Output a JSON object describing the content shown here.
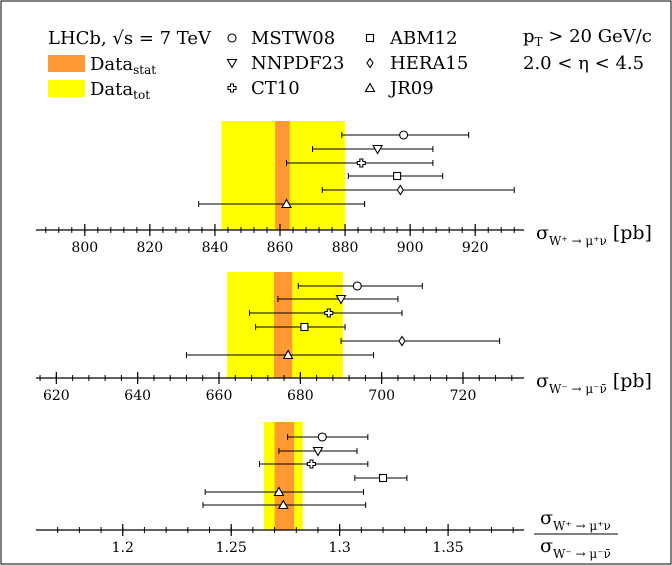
{
  "header": {
    "experiment": "LHCb, ",
    "energy_label": "√s = 7 TeV",
    "bands": [
      {
        "name": "Data",
        "sub": "stat",
        "color": "#ff9933"
      },
      {
        "name": "Data",
        "sub": "tot",
        "color": "#ffff00"
      }
    ],
    "cuts": {
      "pt": {
        "main": "p",
        "sub": "T",
        "rest": " > 20 GeV/c"
      },
      "eta": "2.0 < η < 4.5"
    }
  },
  "pdfs": [
    {
      "name": "MSTW08",
      "marker": "circle"
    },
    {
      "name": "ABM12",
      "marker": "square"
    },
    {
      "name": "NNPDF23",
      "marker": "triangle-down"
    },
    {
      "name": "HERA15",
      "marker": "diamond"
    },
    {
      "name": "CT10",
      "marker": "cross"
    },
    {
      "name": "JR09",
      "marker": "triangle-up"
    }
  ],
  "chart_data": [
    {
      "type": "scatter",
      "xlabel": {
        "sigma": "σ",
        "sub": "W⁺ → μ⁺ν",
        "unit": " [pb]"
      },
      "xlim": [
        785,
        935
      ],
      "ticks": [
        800,
        820,
        840,
        860,
        880,
        900,
        920
      ],
      "tick_labels": [
        "800",
        "820",
        "840",
        "860",
        "880",
        "900",
        "920"
      ],
      "minor_step": 4,
      "data_stat": [
        858.5,
        863
      ],
      "data_tot": [
        842,
        880
      ],
      "points": [
        {
          "pdf": "MSTW08",
          "value": 898,
          "err_low": 19,
          "err_high": 20
        },
        {
          "pdf": "NNPDF23",
          "value": 890,
          "err_low": 20,
          "err_high": 17
        },
        {
          "pdf": "CT10",
          "value": 885,
          "err_low": 23,
          "err_high": 22
        },
        {
          "pdf": "ABM12",
          "value": 896,
          "err_low": 15,
          "err_high": 14
        },
        {
          "pdf": "HERA15",
          "value": 897,
          "err_low": 24,
          "err_high": 35
        },
        {
          "pdf": "JR09",
          "value": 862,
          "err_low": 27,
          "err_high": 24
        }
      ]
    },
    {
      "type": "scatter",
      "xlabel": {
        "sigma": "σ",
        "sub": "W⁻ → μ⁻ν̄",
        "unit": " [pb]"
      },
      "xlim": [
        615,
        735
      ],
      "ticks": [
        620,
        640,
        660,
        680,
        700,
        720
      ],
      "tick_labels": [
        "620",
        "640",
        "660",
        "680",
        "700",
        "720"
      ],
      "minor_step": 4,
      "data_stat": [
        673.5,
        678
      ],
      "data_tot": [
        662,
        690.5
      ],
      "points": [
        {
          "pdf": "MSTW08",
          "value": 694,
          "err_low": 14.5,
          "err_high": 16
        },
        {
          "pdf": "NNPDF23",
          "value": 690,
          "err_low": 15.5,
          "err_high": 14
        },
        {
          "pdf": "CT10",
          "value": 687,
          "err_low": 19.5,
          "err_high": 18
        },
        {
          "pdf": "ABM12",
          "value": 681,
          "err_low": 12,
          "err_high": 10
        },
        {
          "pdf": "HERA15",
          "value": 705,
          "err_low": 15,
          "err_high": 24
        },
        {
          "pdf": "JR09",
          "value": 677,
          "err_low": 25,
          "err_high": 21
        }
      ]
    },
    {
      "type": "scatter",
      "xlabel": {
        "num_sigma": "σ",
        "num_sub": "W⁺ → μ⁺ν",
        "den_sigma": "σ",
        "den_sub": "W⁻ → μ⁻ν̄"
      },
      "xlim": [
        1.16,
        1.385
      ],
      "ticks": [
        1.2,
        1.25,
        1.3,
        1.35
      ],
      "tick_labels": [
        "1.2",
        "1.25",
        "1.3",
        "1.35"
      ],
      "minor_step": 0.01,
      "data_stat": [
        1.27,
        1.279
      ],
      "data_tot": [
        1.265,
        1.283
      ],
      "points": [
        {
          "pdf": "MSTW08",
          "value": 1.292,
          "err_low": 0.016,
          "err_high": 0.021
        },
        {
          "pdf": "NNPDF23",
          "value": 1.29,
          "err_low": 0.018,
          "err_high": 0.018
        },
        {
          "pdf": "CT10",
          "value": 1.287,
          "err_low": 0.024,
          "err_high": 0.026
        },
        {
          "pdf": "ABM12",
          "value": 1.32,
          "err_low": 0.013,
          "err_high": 0.011
        },
        {
          "pdf": "JR09",
          "value": 1.272,
          "err_low": 0.034,
          "err_high": 0.039
        },
        {
          "pdf": "JR09",
          "value": 1.274,
          "err_low": 0.037,
          "err_high": 0.038
        }
      ]
    }
  ]
}
